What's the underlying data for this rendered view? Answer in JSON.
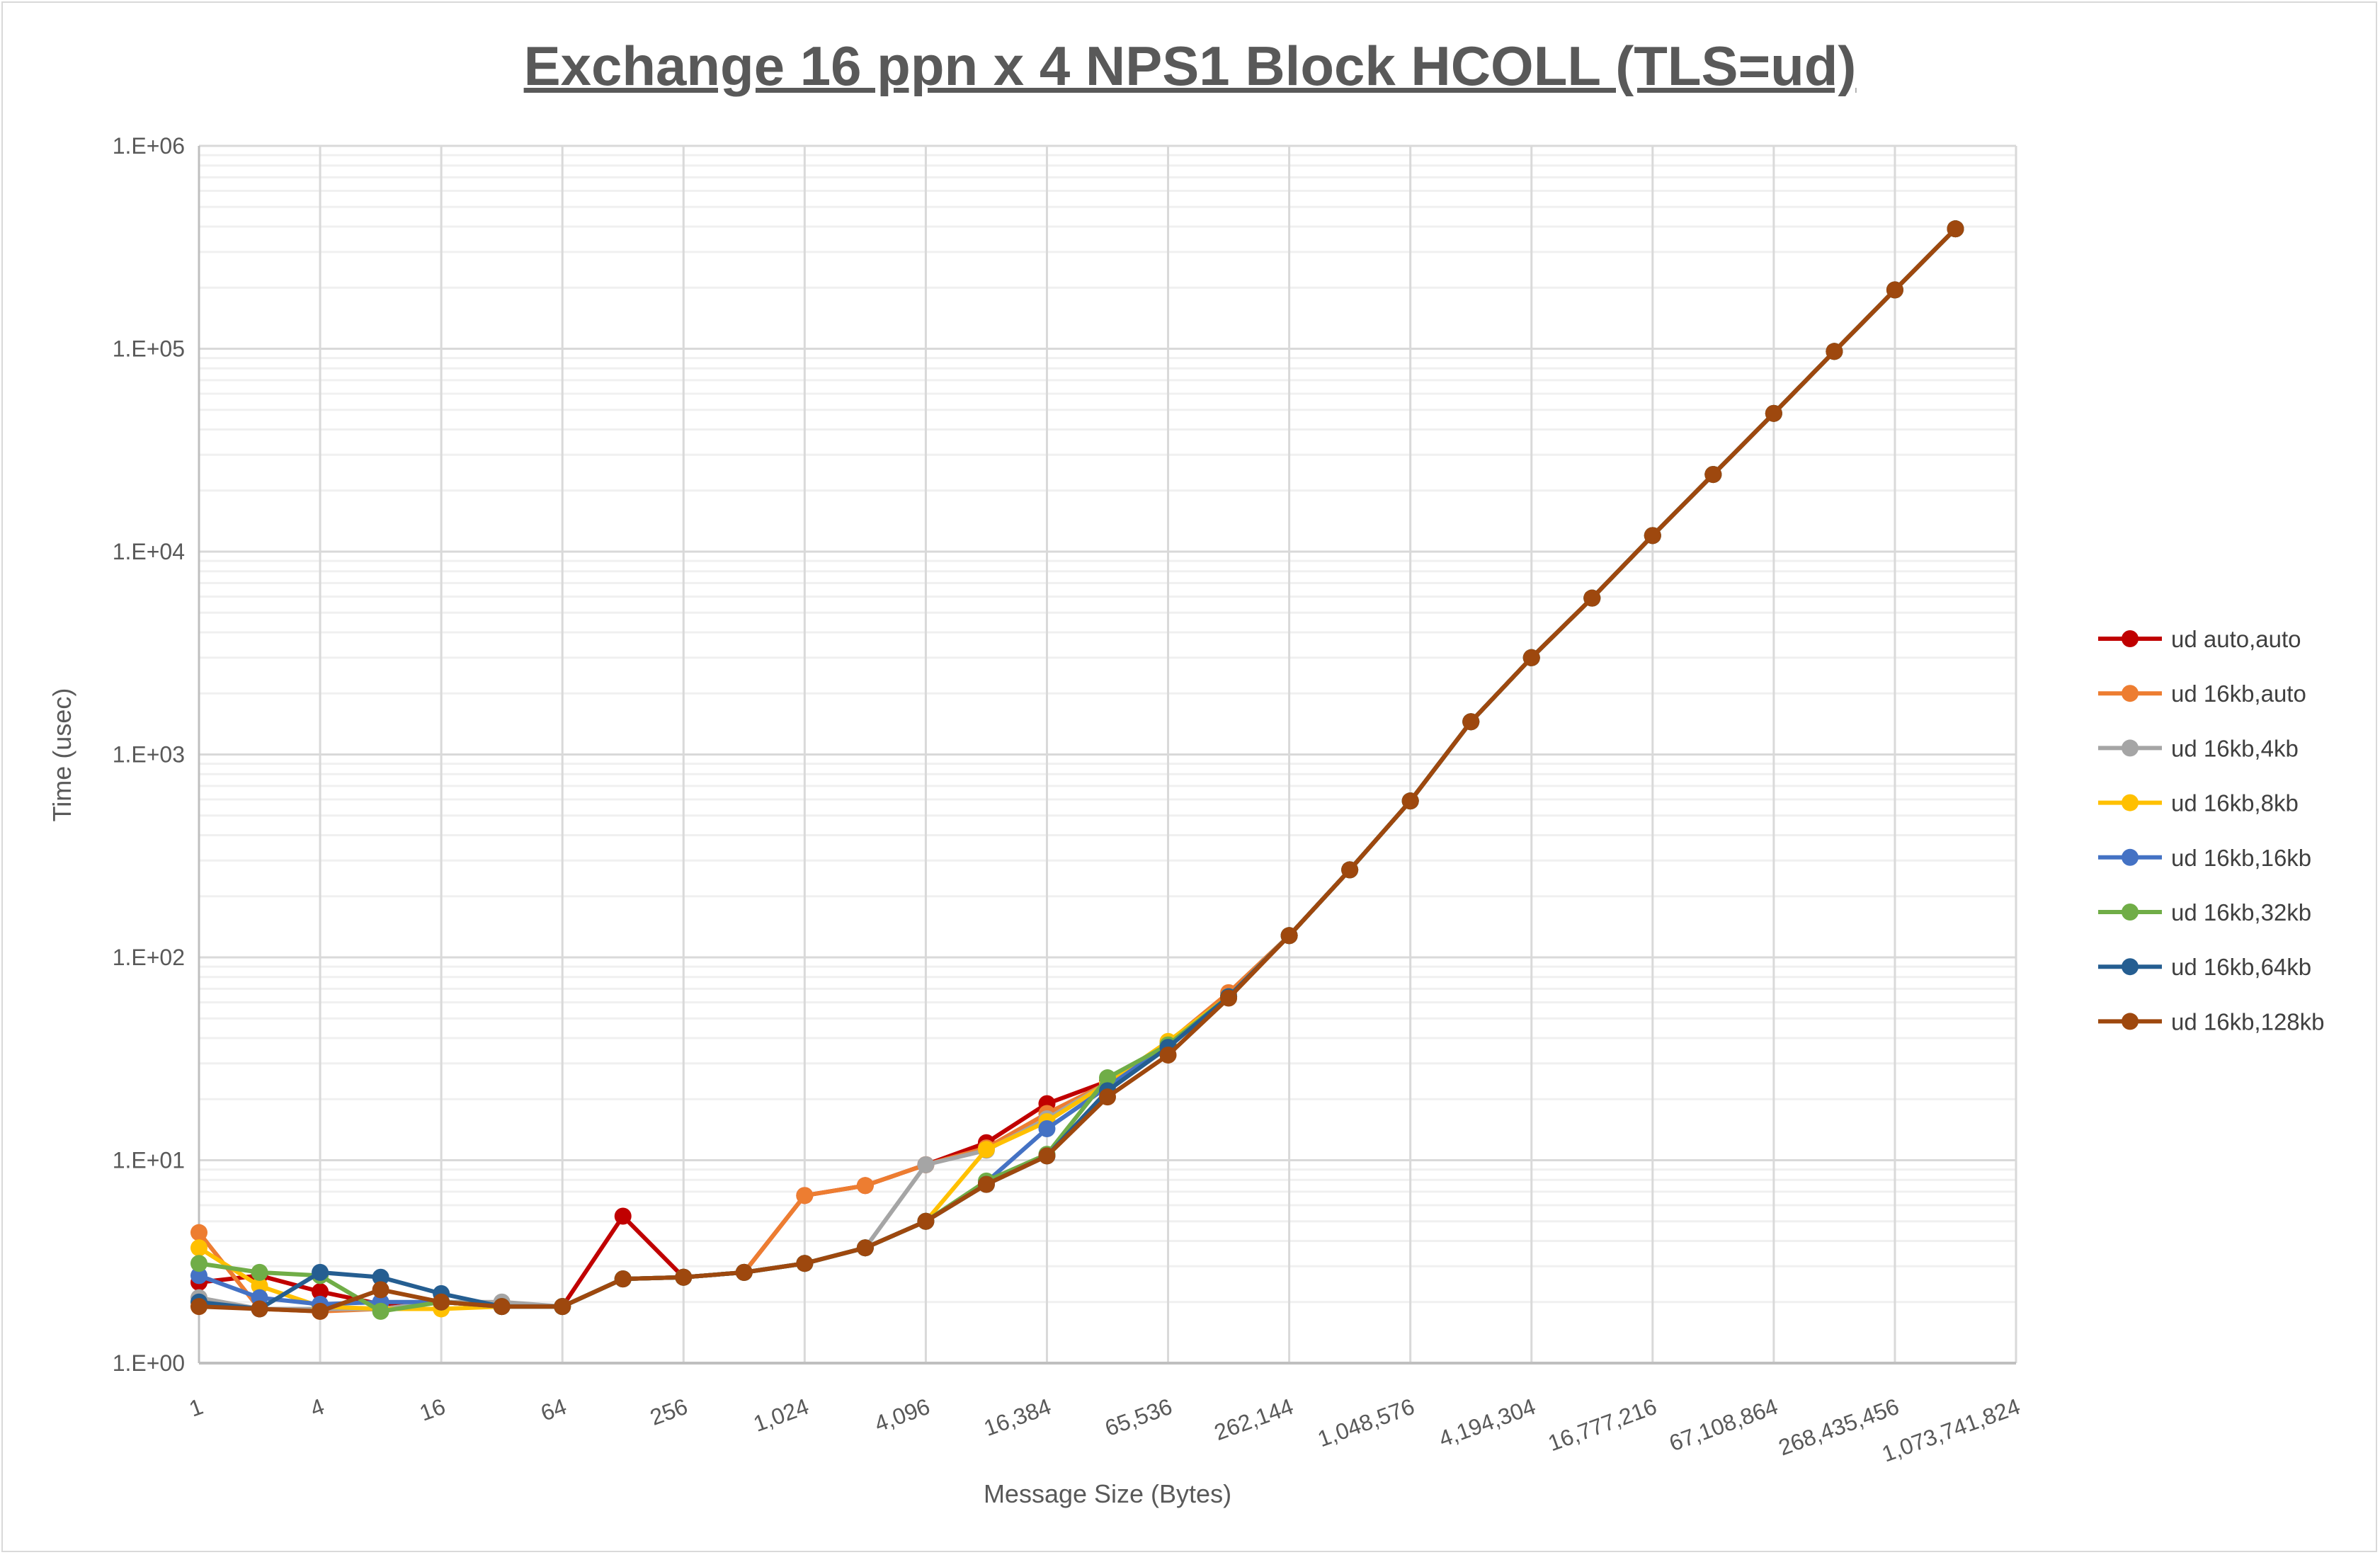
{
  "chart_data": {
    "type": "line",
    "title": "Exchange 16 ppn x 4 NPS1 Block HCOLL (TLS=ud)",
    "xlabel": "Message Size (Bytes)",
    "ylabel": "Time (usec)",
    "xscale": "log2",
    "yscale": "log10",
    "xlim": [
      1,
      1073741824
    ],
    "ylim": [
      1,
      1000000
    ],
    "grid": true,
    "legend_position": "right",
    "x_tick_labels": [
      "1",
      "4",
      "16",
      "64",
      "256",
      "1,024",
      "4,096",
      "16,384",
      "65,536",
      "262,144",
      "1,048,576",
      "4,194,304",
      "16,777,216",
      "67,108,864",
      "268,435,456",
      "1,073,741,824"
    ],
    "y_tick_labels": [
      "1.E+00",
      "1.E+01",
      "1.E+02",
      "1.E+03",
      "1.E+04",
      "1.E+05",
      "1.E+06"
    ],
    "x": [
      1,
      2,
      4,
      8,
      16,
      32,
      64,
      128,
      256,
      512,
      1024,
      2048,
      4096,
      8192,
      16384,
      32768,
      65536,
      131072,
      262144,
      524288,
      1048576,
      2097152,
      4194304,
      8388608,
      16777216,
      33554432,
      67108864,
      134217728,
      268435456,
      536870912
    ],
    "series": [
      {
        "name": "ud auto,auto",
        "color": "#c00000",
        "values": [
          2.5,
          2.7,
          2.25,
          1.95,
          2.0,
          1.9,
          1.9,
          5.3,
          2.65,
          2.8,
          6.7,
          7.5,
          9.5,
          12.2,
          19,
          24.5,
          37,
          64,
          128,
          270,
          590,
          1450,
          3000,
          5900,
          12000,
          24000,
          48000,
          97000,
          195000,
          390000
        ]
      },
      {
        "name": "ud 16kb,auto",
        "color": "#ed7d31",
        "values": [
          4.4,
          1.85,
          1.8,
          1.85,
          2.0,
          1.9,
          1.9,
          2.6,
          2.65,
          2.8,
          6.7,
          7.5,
          9.5,
          11.5,
          17,
          24,
          38,
          67,
          128,
          270,
          590,
          1450,
          3000,
          5900,
          12000,
          24000,
          48000,
          97000,
          195000,
          390000
        ]
      },
      {
        "name": "ud 16kb,4kb",
        "color": "#a5a5a5",
        "values": [
          2.1,
          1.85,
          1.85,
          1.85,
          2.0,
          2.0,
          1.9,
          2.6,
          2.65,
          2.8,
          3.1,
          3.7,
          9.5,
          11.2,
          16,
          24,
          37,
          64,
          128,
          270,
          590,
          1450,
          3000,
          5900,
          12000,
          24000,
          48000,
          97000,
          195000,
          390000
        ]
      },
      {
        "name": "ud 16kb,8kb",
        "color": "#ffc000",
        "values": [
          3.7,
          2.4,
          1.9,
          1.85,
          1.85,
          1.9,
          1.9,
          2.6,
          2.65,
          2.8,
          3.1,
          3.7,
          5.0,
          11.3,
          15.5,
          24,
          38.5,
          64,
          128,
          270,
          590,
          1450,
          3000,
          5900,
          12000,
          24000,
          48000,
          97000,
          195000,
          390000
        ]
      },
      {
        "name": "ud 16kb,16kb",
        "color": "#4472c4",
        "values": [
          2.7,
          2.1,
          1.95,
          2.0,
          2.0,
          1.9,
          1.9,
          2.6,
          2.65,
          2.8,
          3.1,
          3.7,
          5.0,
          7.8,
          14.3,
          23,
          37,
          64,
          128,
          270,
          590,
          1450,
          3000,
          5900,
          12000,
          24000,
          48000,
          97000,
          195000,
          390000
        ]
      },
      {
        "name": "ud 16kb,32kb",
        "color": "#70ad47",
        "values": [
          3.1,
          2.8,
          2.7,
          1.8,
          2.0,
          1.9,
          1.9,
          2.6,
          2.65,
          2.8,
          3.1,
          3.7,
          5.0,
          7.9,
          10.7,
          25.5,
          37,
          64,
          128,
          270,
          590,
          1450,
          3000,
          5900,
          12000,
          24000,
          48000,
          97000,
          195000,
          390000
        ]
      },
      {
        "name": "ud 16kb,64kb",
        "color": "#255e91",
        "values": [
          2.0,
          1.85,
          2.8,
          2.65,
          2.2,
          1.9,
          1.9,
          2.6,
          2.65,
          2.8,
          3.1,
          3.7,
          5.0,
          7.6,
          10.5,
          22,
          36,
          64,
          128,
          270,
          590,
          1450,
          3000,
          5900,
          12000,
          24000,
          48000,
          97000,
          195000,
          390000
        ]
      },
      {
        "name": "ud 16kb,128kb",
        "color": "#9e480e",
        "values": [
          1.9,
          1.85,
          1.8,
          2.3,
          2.0,
          1.9,
          1.9,
          2.6,
          2.65,
          2.8,
          3.1,
          3.7,
          5.0,
          7.6,
          10.5,
          20.5,
          33,
          63,
          128,
          270,
          590,
          1450,
          3000,
          5900,
          12000,
          24000,
          48000,
          97000,
          195000,
          390000
        ]
      }
    ]
  }
}
